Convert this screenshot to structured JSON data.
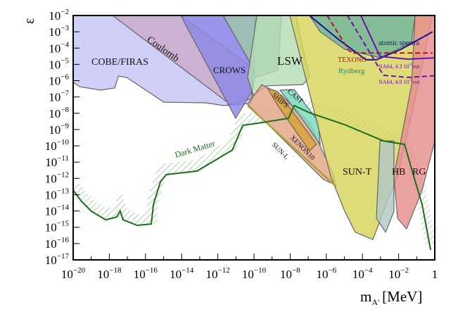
{
  "chart_data": {
    "type": "area",
    "xlabel": "m",
    "xlabel_sub": "A'",
    "xlabel_unit": "[MeV]",
    "ylabel": "ε",
    "x_scale": "log",
    "y_scale": "log",
    "xlim": [
      1e-20,
      1
    ],
    "ylim": [
      1e-17,
      0.01
    ],
    "x_tick_exponents": [
      -20,
      -18,
      -16,
      -14,
      -12,
      -10,
      -8,
      -6,
      -4,
      -2,
      0
    ],
    "y_tick_exponents": [
      -2,
      -3,
      -4,
      -5,
      -6,
      -7,
      -8,
      -9,
      -10,
      -11,
      -12,
      -13,
      -14,
      -15,
      -16,
      -17
    ],
    "grid": false,
    "regions": [
      {
        "name": "COBE/FIRAS",
        "color": "#c4c4f6",
        "points_log10": [
          [
            -20,
            -2
          ],
          [
            -20,
            -6.1
          ],
          [
            -19.65,
            -6.37
          ],
          [
            -18.48,
            -6.58
          ],
          [
            -17.7,
            -6.45
          ],
          [
            -17.5,
            -5.72
          ],
          [
            -17.04,
            -5.8
          ],
          [
            -14.98,
            -7.32
          ],
          [
            -12.65,
            -7.36
          ],
          [
            -11.71,
            -7.53
          ],
          [
            -10.16,
            -7.4
          ],
          [
            -9.96,
            -5.8
          ],
          [
            -9.96,
            -2
          ]
        ]
      },
      {
        "name": "Coulomb",
        "color": "#c9a9c9",
        "points_log10": [
          [
            -17.82,
            -2
          ],
          [
            -14.05,
            -2
          ],
          [
            -10.04,
            -5.24
          ],
          [
            -10.12,
            -7.1
          ],
          [
            -11.32,
            -7.45
          ]
        ]
      },
      {
        "name": "",
        "color": "#93b8a8",
        "points_log10": [
          [
            -11.71,
            -2
          ],
          [
            -8.48,
            -2
          ],
          [
            -8.68,
            -5.37
          ],
          [
            -9.96,
            -5.8
          ],
          [
            -10.04,
            -5.24
          ]
        ]
      },
      {
        "name": "CROWS",
        "color": "#8c88e6",
        "points_log10": [
          [
            -14.05,
            -2
          ],
          [
            -11.71,
            -2
          ],
          [
            -10.04,
            -5.24
          ],
          [
            -10.12,
            -6.67
          ],
          [
            -11.01,
            -8.31
          ]
        ]
      },
      {
        "name": "LSW",
        "color": "#b6dcb4",
        "points_log10": [
          [
            -9.84,
            -2
          ],
          [
            -7.7,
            -2
          ],
          [
            -6.93,
            -5.8
          ],
          [
            -7.3,
            -6.24
          ],
          [
            -9.3,
            -6.32
          ],
          [
            -10.04,
            -6.89
          ],
          [
            -10.35,
            -5.8
          ]
        ]
      },
      {
        "name": "XENON10",
        "color": "#e3a585",
        "points_log10": [
          [
            -10.35,
            -7.45
          ],
          [
            -9.57,
            -6.24
          ],
          [
            -8.48,
            -6.89
          ],
          [
            -6.93,
            -8.61
          ],
          [
            -5.56,
            -11.86
          ],
          [
            -5.53,
            -12.38
          ],
          [
            -6.15,
            -12.07
          ]
        ]
      },
      {
        "name": "SHIPS",
        "color": "#d9a235",
        "points_log10": [
          [
            -9.26,
            -6.45
          ],
          [
            -8.68,
            -6.67
          ],
          [
            -6.54,
            -9.9
          ],
          [
            -6.93,
            -10.3
          ],
          [
            -8.68,
            -7.53
          ]
        ]
      },
      {
        "name": "CAST",
        "color": "#78d8c0",
        "points_log10": [
          [
            -8.56,
            -6.58
          ],
          [
            -7.78,
            -6.54
          ],
          [
            -6.46,
            -8.48
          ],
          [
            -6.34,
            -9.9
          ],
          [
            -7.3,
            -8.4
          ]
        ]
      },
      {
        "name": "SUN-T",
        "color": "#d6d45c",
        "points_log10": [
          [
            -8.02,
            -2
          ],
          [
            -0.12,
            -2
          ],
          [
            -1.09,
            -7.1
          ],
          [
            -2.06,
            -11.86
          ],
          [
            -2.84,
            -14.02
          ],
          [
            -3.42,
            -15.75
          ],
          [
            -4.4,
            -15.3
          ],
          [
            -4.98,
            -14.02
          ],
          [
            -5.76,
            -11.86
          ]
        ]
      },
      {
        "name": "Rydberg",
        "color": "#6fb49c",
        "points_log10": [
          [
            -6.93,
            -2
          ],
          [
            -1.09,
            -2
          ],
          [
            -1.28,
            -3.64
          ],
          [
            -3.0,
            -4.6
          ],
          [
            -4.98,
            -4.08
          ],
          [
            -6.34,
            -3.0
          ]
        ]
      },
      {
        "name": "HB",
        "color": "#b2c8c4",
        "points_log10": [
          [
            -3.03,
            -9.7
          ],
          [
            -2.26,
            -9.7
          ],
          [
            -2.26,
            -14.02
          ],
          [
            -2.72,
            -15.3
          ],
          [
            -3.23,
            -14.45
          ]
        ]
      },
      {
        "name": "RG",
        "color": "#e68e8e",
        "points_log10": [
          [
            -1.09,
            -2
          ],
          [
            0,
            -2
          ],
          [
            0,
            -9.7
          ],
          [
            -0.7,
            -12.72
          ],
          [
            -1.56,
            -15.1
          ],
          [
            -2.06,
            -14.45
          ],
          [
            -2.26,
            -11.86
          ],
          [
            -1.28,
            -6.24
          ]
        ]
      }
    ],
    "lines": [
      {
        "name": "SUN-L",
        "color": "#a8a040",
        "style": "solid",
        "points_log10": [
          [
            -10.35,
            -7.53
          ],
          [
            -5.45,
            -12.5
          ]
        ]
      },
      {
        "name": "Dark Matter",
        "color": "#1a6e1a",
        "style": "solid",
        "hatched": true,
        "points_log10": [
          [
            -20,
            -12.72
          ],
          [
            -19.57,
            -13.37
          ],
          [
            -18.99,
            -14.02
          ],
          [
            -18.2,
            -14.54
          ],
          [
            -17.6,
            -14.37
          ],
          [
            -17.4,
            -14.0
          ],
          [
            -17.24,
            -14.54
          ],
          [
            -16.46,
            -14.88
          ],
          [
            -15.68,
            -14.8
          ],
          [
            -15.56,
            -13.59
          ],
          [
            -15.17,
            -12.2
          ],
          [
            -14.86,
            -11.77
          ],
          [
            -13.15,
            -11.55
          ],
          [
            -11.2,
            -10.26
          ],
          [
            -10.62,
            -8.74
          ],
          [
            -9.77,
            -8.61
          ],
          [
            -8.09,
            -8.31
          ],
          [
            -7.78,
            -7.53
          ],
          [
            -6.93,
            -7.97
          ],
          [
            -4.98,
            -8.7
          ],
          [
            -2.84,
            -9.7
          ],
          [
            -1.67,
            -9.91
          ],
          [
            -1.28,
            -11.43
          ],
          [
            -0.7,
            -13.6
          ],
          [
            -0.23,
            -16.4
          ]
        ]
      },
      {
        "name": "atomic spectra",
        "color": "#1414a0",
        "style": "solid",
        "points_log10": [
          [
            -6.93,
            -2
          ],
          [
            -5.37,
            -3.43
          ],
          [
            -3.81,
            -4.72
          ],
          [
            -3.23,
            -4.72
          ],
          [
            -1.87,
            -4.08
          ],
          [
            -0.12,
            -3.0
          ]
        ]
      },
      {
        "name": "TEXONO",
        "color": "#c01010",
        "style": "dashed",
        "points_log10": [
          [
            -5.95,
            -2
          ],
          [
            -4.79,
            -4.08
          ],
          [
            -4.6,
            -4.3
          ],
          [
            -0.12,
            -4.3
          ]
        ]
      },
      {
        "name": "NA64, 4.3 10^10 eot",
        "color": "#7010a8",
        "style": "solid",
        "points_log10": [
          [
            -4.09,
            -2
          ],
          [
            -3.03,
            -4.51
          ],
          [
            -1.48,
            -4.68
          ],
          [
            0,
            -4.6
          ]
        ]
      },
      {
        "name": "NA64, 4.0 10^12 eot",
        "color": "#7010a8",
        "style": "dashed",
        "points_log10": [
          [
            -4.83,
            -2
          ],
          [
            -2.84,
            -5.67
          ],
          [
            -1.48,
            -5.8
          ],
          [
            0,
            -5.7
          ]
        ]
      }
    ],
    "labels": {
      "cobe": "COBE/FIRAS",
      "coulomb": "Coulomb",
      "crows": "CROWS",
      "lsw": "LSW",
      "cast": "CAST",
      "ships": "SHIPS",
      "xenon": "XENON10",
      "sunl": "SUN-L",
      "sunt": "SUN-T",
      "hb": "HB",
      "rg": "RG",
      "dm": "Dark Matter",
      "texono": "TEXONO",
      "rydberg": "Rydberg",
      "atomic": "atomic spectra",
      "na64a": "NA64, 4.3 10",
      "na64a_sup": "10",
      "na64a_unit": "eot",
      "na64b": "NA64, 4.0 10",
      "na64b_sup": "12",
      "na64b_unit": "eot"
    }
  }
}
